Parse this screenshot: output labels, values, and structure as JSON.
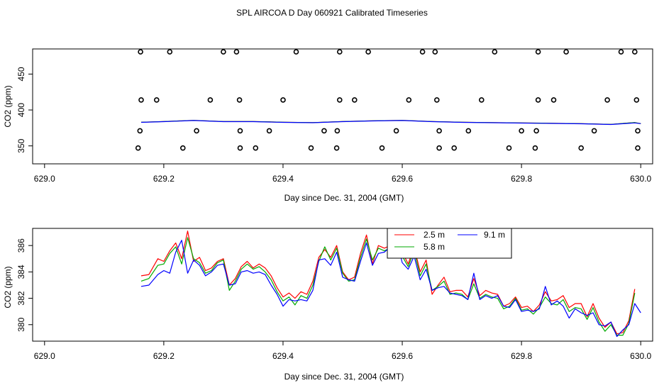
{
  "figure": {
    "title": "SPL AIRCOA D  Day 060921  Calibrated Timeseries"
  },
  "chart_data": [
    {
      "type": "scatter",
      "title": "",
      "xlabel": "Day since Dec. 31, 2004 (GMT)",
      "ylabel": "CO2 (ppm)",
      "xlim": [
        628.98,
        630.02
      ],
      "ylim": [
        325,
        485
      ],
      "x_ticks": [
        "629.0",
        "629.2",
        "629.4",
        "629.6",
        "629.8",
        "630.0"
      ],
      "y_ticks": [
        "350",
        "400",
        "450"
      ],
      "markers": [
        {
          "x": 629.157,
          "y": 347
        },
        {
          "x": 629.232,
          "y": 347
        },
        {
          "x": 629.328,
          "y": 347
        },
        {
          "x": 629.354,
          "y": 347
        },
        {
          "x": 629.447,
          "y": 347
        },
        {
          "x": 629.49,
          "y": 347
        },
        {
          "x": 629.566,
          "y": 347
        },
        {
          "x": 629.662,
          "y": 347
        },
        {
          "x": 629.687,
          "y": 347
        },
        {
          "x": 629.779,
          "y": 347
        },
        {
          "x": 629.823,
          "y": 347
        },
        {
          "x": 629.9,
          "y": 347
        },
        {
          "x": 629.995,
          "y": 347
        },
        {
          "x": 629.16,
          "y": 371
        },
        {
          "x": 629.255,
          "y": 371
        },
        {
          "x": 629.328,
          "y": 371
        },
        {
          "x": 629.377,
          "y": 371
        },
        {
          "x": 629.469,
          "y": 371
        },
        {
          "x": 629.491,
          "y": 371
        },
        {
          "x": 629.59,
          "y": 371
        },
        {
          "x": 629.662,
          "y": 371
        },
        {
          "x": 629.711,
          "y": 371
        },
        {
          "x": 629.8,
          "y": 371
        },
        {
          "x": 629.825,
          "y": 371
        },
        {
          "x": 629.922,
          "y": 371
        },
        {
          "x": 629.995,
          "y": 371
        },
        {
          "x": 629.162,
          "y": 414
        },
        {
          "x": 629.188,
          "y": 414
        },
        {
          "x": 629.278,
          "y": 414
        },
        {
          "x": 629.327,
          "y": 414
        },
        {
          "x": 629.4,
          "y": 414
        },
        {
          "x": 629.495,
          "y": 414
        },
        {
          "x": 629.52,
          "y": 414
        },
        {
          "x": 629.611,
          "y": 414
        },
        {
          "x": 629.658,
          "y": 414
        },
        {
          "x": 629.733,
          "y": 414
        },
        {
          "x": 629.828,
          "y": 414
        },
        {
          "x": 629.854,
          "y": 414
        },
        {
          "x": 629.944,
          "y": 414
        },
        {
          "x": 629.993,
          "y": 414
        },
        {
          "x": 629.161,
          "y": 481
        },
        {
          "x": 629.21,
          "y": 481
        },
        {
          "x": 629.3,
          "y": 481
        },
        {
          "x": 629.322,
          "y": 481
        },
        {
          "x": 629.422,
          "y": 481
        },
        {
          "x": 629.495,
          "y": 481
        },
        {
          "x": 629.543,
          "y": 481
        },
        {
          "x": 629.634,
          "y": 481
        },
        {
          "x": 629.655,
          "y": 481
        },
        {
          "x": 629.755,
          "y": 481
        },
        {
          "x": 629.828,
          "y": 481
        },
        {
          "x": 629.875,
          "y": 481
        },
        {
          "x": 629.967,
          "y": 481
        },
        {
          "x": 629.99,
          "y": 481
        }
      ],
      "series": [
        {
          "color": "#ff0000",
          "x": [
            629.162,
            629.2,
            629.25,
            629.3,
            629.35,
            629.4,
            629.45,
            629.5,
            629.55,
            629.6,
            629.65,
            629.7,
            629.75,
            629.8,
            629.85,
            629.9,
            629.95,
            629.99,
            630.0
          ],
          "y": [
            383,
            384,
            385.5,
            384,
            384,
            383,
            382.5,
            384,
            385,
            385.5,
            384,
            383,
            382.5,
            382,
            381.5,
            381,
            380,
            382.5,
            381
          ]
        },
        {
          "color": "#00aa00",
          "x": [
            629.162,
            629.2,
            629.25,
            629.3,
            629.35,
            629.4,
            629.45,
            629.5,
            629.55,
            629.6,
            629.65,
            629.7,
            629.75,
            629.8,
            629.85,
            629.9,
            629.95,
            629.99,
            630.0
          ],
          "y": [
            383,
            384,
            385.5,
            384,
            384,
            383,
            382.5,
            384,
            385,
            385.5,
            384,
            383,
            382.5,
            382,
            381.5,
            381,
            380,
            382.5,
            381
          ]
        },
        {
          "color": "#0000ff",
          "x": [
            629.162,
            629.2,
            629.25,
            629.3,
            629.35,
            629.4,
            629.45,
            629.5,
            629.55,
            629.6,
            629.65,
            629.7,
            629.75,
            629.8,
            629.85,
            629.9,
            629.95,
            629.99,
            630.0
          ],
          "y": [
            382.8,
            383.8,
            385.3,
            383.8,
            383.8,
            382.8,
            382.3,
            383.8,
            384.8,
            385.3,
            383.8,
            382.8,
            382.3,
            381.8,
            381.3,
            380.8,
            379.8,
            382,
            381
          ]
        }
      ]
    },
    {
      "type": "line",
      "title": "",
      "xlabel": "Day since Dec. 31, 2004 (GMT)",
      "ylabel": "CO2 (ppm)",
      "xlim": [
        628.98,
        630.02
      ],
      "ylim": [
        378.75,
        387.3
      ],
      "x_ticks": [
        "629.0",
        "629.2",
        "629.4",
        "629.6",
        "629.8",
        "630.0"
      ],
      "y_ticks": [
        "380",
        "382",
        "384",
        "386"
      ],
      "legend": "top-center",
      "series": [
        {
          "name": "2.5 m",
          "color": "#ff0000",
          "x": [
            629.162,
            629.175,
            629.19,
            629.2,
            629.21,
            629.22,
            629.23,
            629.24,
            629.25,
            629.26,
            629.27,
            629.28,
            629.29,
            629.3,
            629.31,
            629.32,
            629.33,
            629.34,
            629.35,
            629.36,
            629.37,
            629.38,
            629.39,
            629.4,
            629.41,
            629.42,
            629.43,
            629.44,
            629.45,
            629.46,
            629.47,
            629.48,
            629.49,
            629.5,
            629.51,
            629.52,
            629.53,
            629.54,
            629.55,
            629.56,
            629.57,
            629.58,
            629.59,
            629.6,
            629.61,
            629.62,
            629.63,
            629.64,
            629.65,
            629.66,
            629.67,
            629.68,
            629.69,
            629.7,
            629.71,
            629.72,
            629.73,
            629.74,
            629.75,
            629.76,
            629.77,
            629.78,
            629.79,
            629.8,
            629.81,
            629.82,
            629.83,
            629.84,
            629.85,
            629.86,
            629.87,
            629.88,
            629.89,
            629.9,
            629.91,
            629.92,
            629.93,
            629.94,
            629.95,
            629.96,
            629.97,
            629.98,
            629.99
          ],
          "y": [
            383.7,
            383.8,
            385.0,
            384.8,
            385.6,
            386.2,
            385.0,
            387.1,
            384.8,
            385.1,
            384.1,
            384.3,
            384.8,
            385.0,
            383.0,
            383.5,
            384.4,
            384.8,
            384.3,
            384.6,
            384.3,
            383.7,
            382.8,
            382.1,
            382.4,
            382.0,
            382.5,
            382.3,
            383.3,
            385.1,
            385.7,
            385.1,
            386.0,
            384.0,
            383.4,
            383.6,
            385.4,
            386.8,
            384.6,
            386.0,
            385.8,
            386.0,
            387.0,
            385.5,
            384.6,
            385.9,
            384.0,
            384.9,
            382.3,
            383.0,
            383.6,
            382.5,
            382.6,
            382.6,
            382.1,
            383.5,
            382.2,
            382.6,
            382.4,
            382.3,
            381.4,
            381.6,
            382.1,
            381.3,
            381.4,
            381.0,
            381.5,
            382.5,
            381.8,
            381.9,
            382.2,
            381.3,
            381.6,
            381.6,
            380.6,
            381.6,
            380.5,
            379.8,
            380.2,
            379.3,
            379.4,
            380.3,
            382.7
          ]
        },
        {
          "name": "5.8 m",
          "color": "#00aa00",
          "x": [
            629.162,
            629.175,
            629.19,
            629.2,
            629.21,
            629.22,
            629.23,
            629.24,
            629.25,
            629.26,
            629.27,
            629.28,
            629.29,
            629.3,
            629.31,
            629.32,
            629.33,
            629.34,
            629.35,
            629.36,
            629.37,
            629.38,
            629.39,
            629.4,
            629.41,
            629.42,
            629.43,
            629.44,
            629.45,
            629.46,
            629.47,
            629.48,
            629.49,
            629.5,
            629.51,
            629.52,
            629.53,
            629.54,
            629.55,
            629.56,
            629.57,
            629.58,
            629.59,
            629.6,
            629.61,
            629.62,
            629.63,
            629.64,
            629.65,
            629.66,
            629.67,
            629.68,
            629.69,
            629.7,
            629.71,
            629.72,
            629.73,
            629.74,
            629.75,
            629.76,
            629.77,
            629.78,
            629.79,
            629.8,
            629.81,
            629.82,
            629.83,
            629.84,
            629.85,
            629.86,
            629.87,
            629.88,
            629.89,
            629.9,
            629.91,
            629.92,
            629.93,
            629.94,
            629.95,
            629.96,
            629.97,
            629.98,
            629.99
          ],
          "y": [
            383.3,
            383.5,
            384.5,
            384.6,
            385.4,
            385.9,
            384.6,
            386.6,
            385.0,
            384.7,
            383.9,
            384.1,
            384.7,
            384.9,
            382.6,
            383.3,
            384.2,
            384.6,
            384.2,
            384.4,
            384.0,
            383.4,
            382.5,
            381.8,
            382.1,
            381.5,
            382.2,
            382.0,
            383.0,
            384.8,
            385.9,
            384.9,
            385.8,
            383.9,
            383.3,
            383.4,
            385.1,
            386.5,
            384.9,
            385.8,
            385.6,
            385.8,
            386.8,
            385.2,
            384.4,
            385.6,
            383.7,
            384.6,
            382.6,
            382.9,
            383.3,
            382.3,
            382.4,
            382.3,
            381.9,
            383.1,
            382.0,
            382.3,
            382.1,
            382.0,
            381.2,
            381.4,
            382.0,
            381.1,
            381.2,
            380.8,
            381.3,
            382.1,
            381.6,
            381.5,
            381.9,
            381.0,
            381.3,
            381.2,
            380.4,
            381.3,
            380.2,
            379.5,
            380.0,
            379.2,
            379.2,
            380.1,
            382.4
          ]
        },
        {
          "name": "9.1 m",
          "color": "#0000ff",
          "x": [
            629.162,
            629.175,
            629.19,
            629.2,
            629.21,
            629.22,
            629.23,
            629.24,
            629.25,
            629.26,
            629.27,
            629.28,
            629.29,
            629.3,
            629.31,
            629.32,
            629.33,
            629.34,
            629.35,
            629.36,
            629.37,
            629.38,
            629.39,
            629.4,
            629.41,
            629.42,
            629.43,
            629.44,
            629.45,
            629.46,
            629.47,
            629.48,
            629.49,
            629.5,
            629.51,
            629.52,
            629.53,
            629.54,
            629.55,
            629.56,
            629.57,
            629.58,
            629.59,
            629.6,
            629.61,
            629.62,
            629.63,
            629.64,
            629.65,
            629.66,
            629.67,
            629.68,
            629.69,
            629.7,
            629.71,
            629.72,
            629.73,
            629.74,
            629.75,
            629.76,
            629.77,
            629.78,
            629.79,
            629.8,
            629.81,
            629.82,
            629.83,
            629.84,
            629.85,
            629.86,
            629.87,
            629.88,
            629.89,
            629.9,
            629.91,
            629.92,
            629.93,
            629.94,
            629.95,
            629.96,
            629.97,
            629.98,
            629.99,
            630.0
          ],
          "y": [
            382.9,
            383.0,
            383.8,
            384.1,
            383.9,
            385.5,
            386.4,
            383.9,
            384.9,
            384.5,
            383.7,
            384.0,
            384.5,
            384.6,
            383.0,
            383.1,
            384.0,
            384.1,
            383.9,
            384.0,
            383.8,
            383.0,
            382.3,
            381.4,
            381.9,
            381.8,
            381.9,
            381.8,
            382.6,
            384.9,
            385.0,
            384.5,
            385.5,
            383.6,
            383.4,
            383.3,
            384.8,
            386.2,
            384.5,
            385.4,
            385.5,
            385.9,
            386.5,
            384.7,
            384.2,
            385.2,
            383.4,
            384.2,
            382.6,
            382.8,
            382.9,
            382.4,
            382.3,
            382.2,
            381.9,
            383.9,
            381.9,
            382.2,
            382.0,
            382.2,
            381.4,
            381.3,
            381.9,
            381.0,
            381.1,
            381.0,
            381.2,
            382.9,
            381.5,
            381.8,
            381.4,
            380.5,
            381.2,
            380.9,
            380.7,
            380.9,
            380.0,
            379.9,
            380.2,
            379.1,
            379.6,
            380.0,
            381.6,
            380.9
          ]
        }
      ]
    }
  ]
}
